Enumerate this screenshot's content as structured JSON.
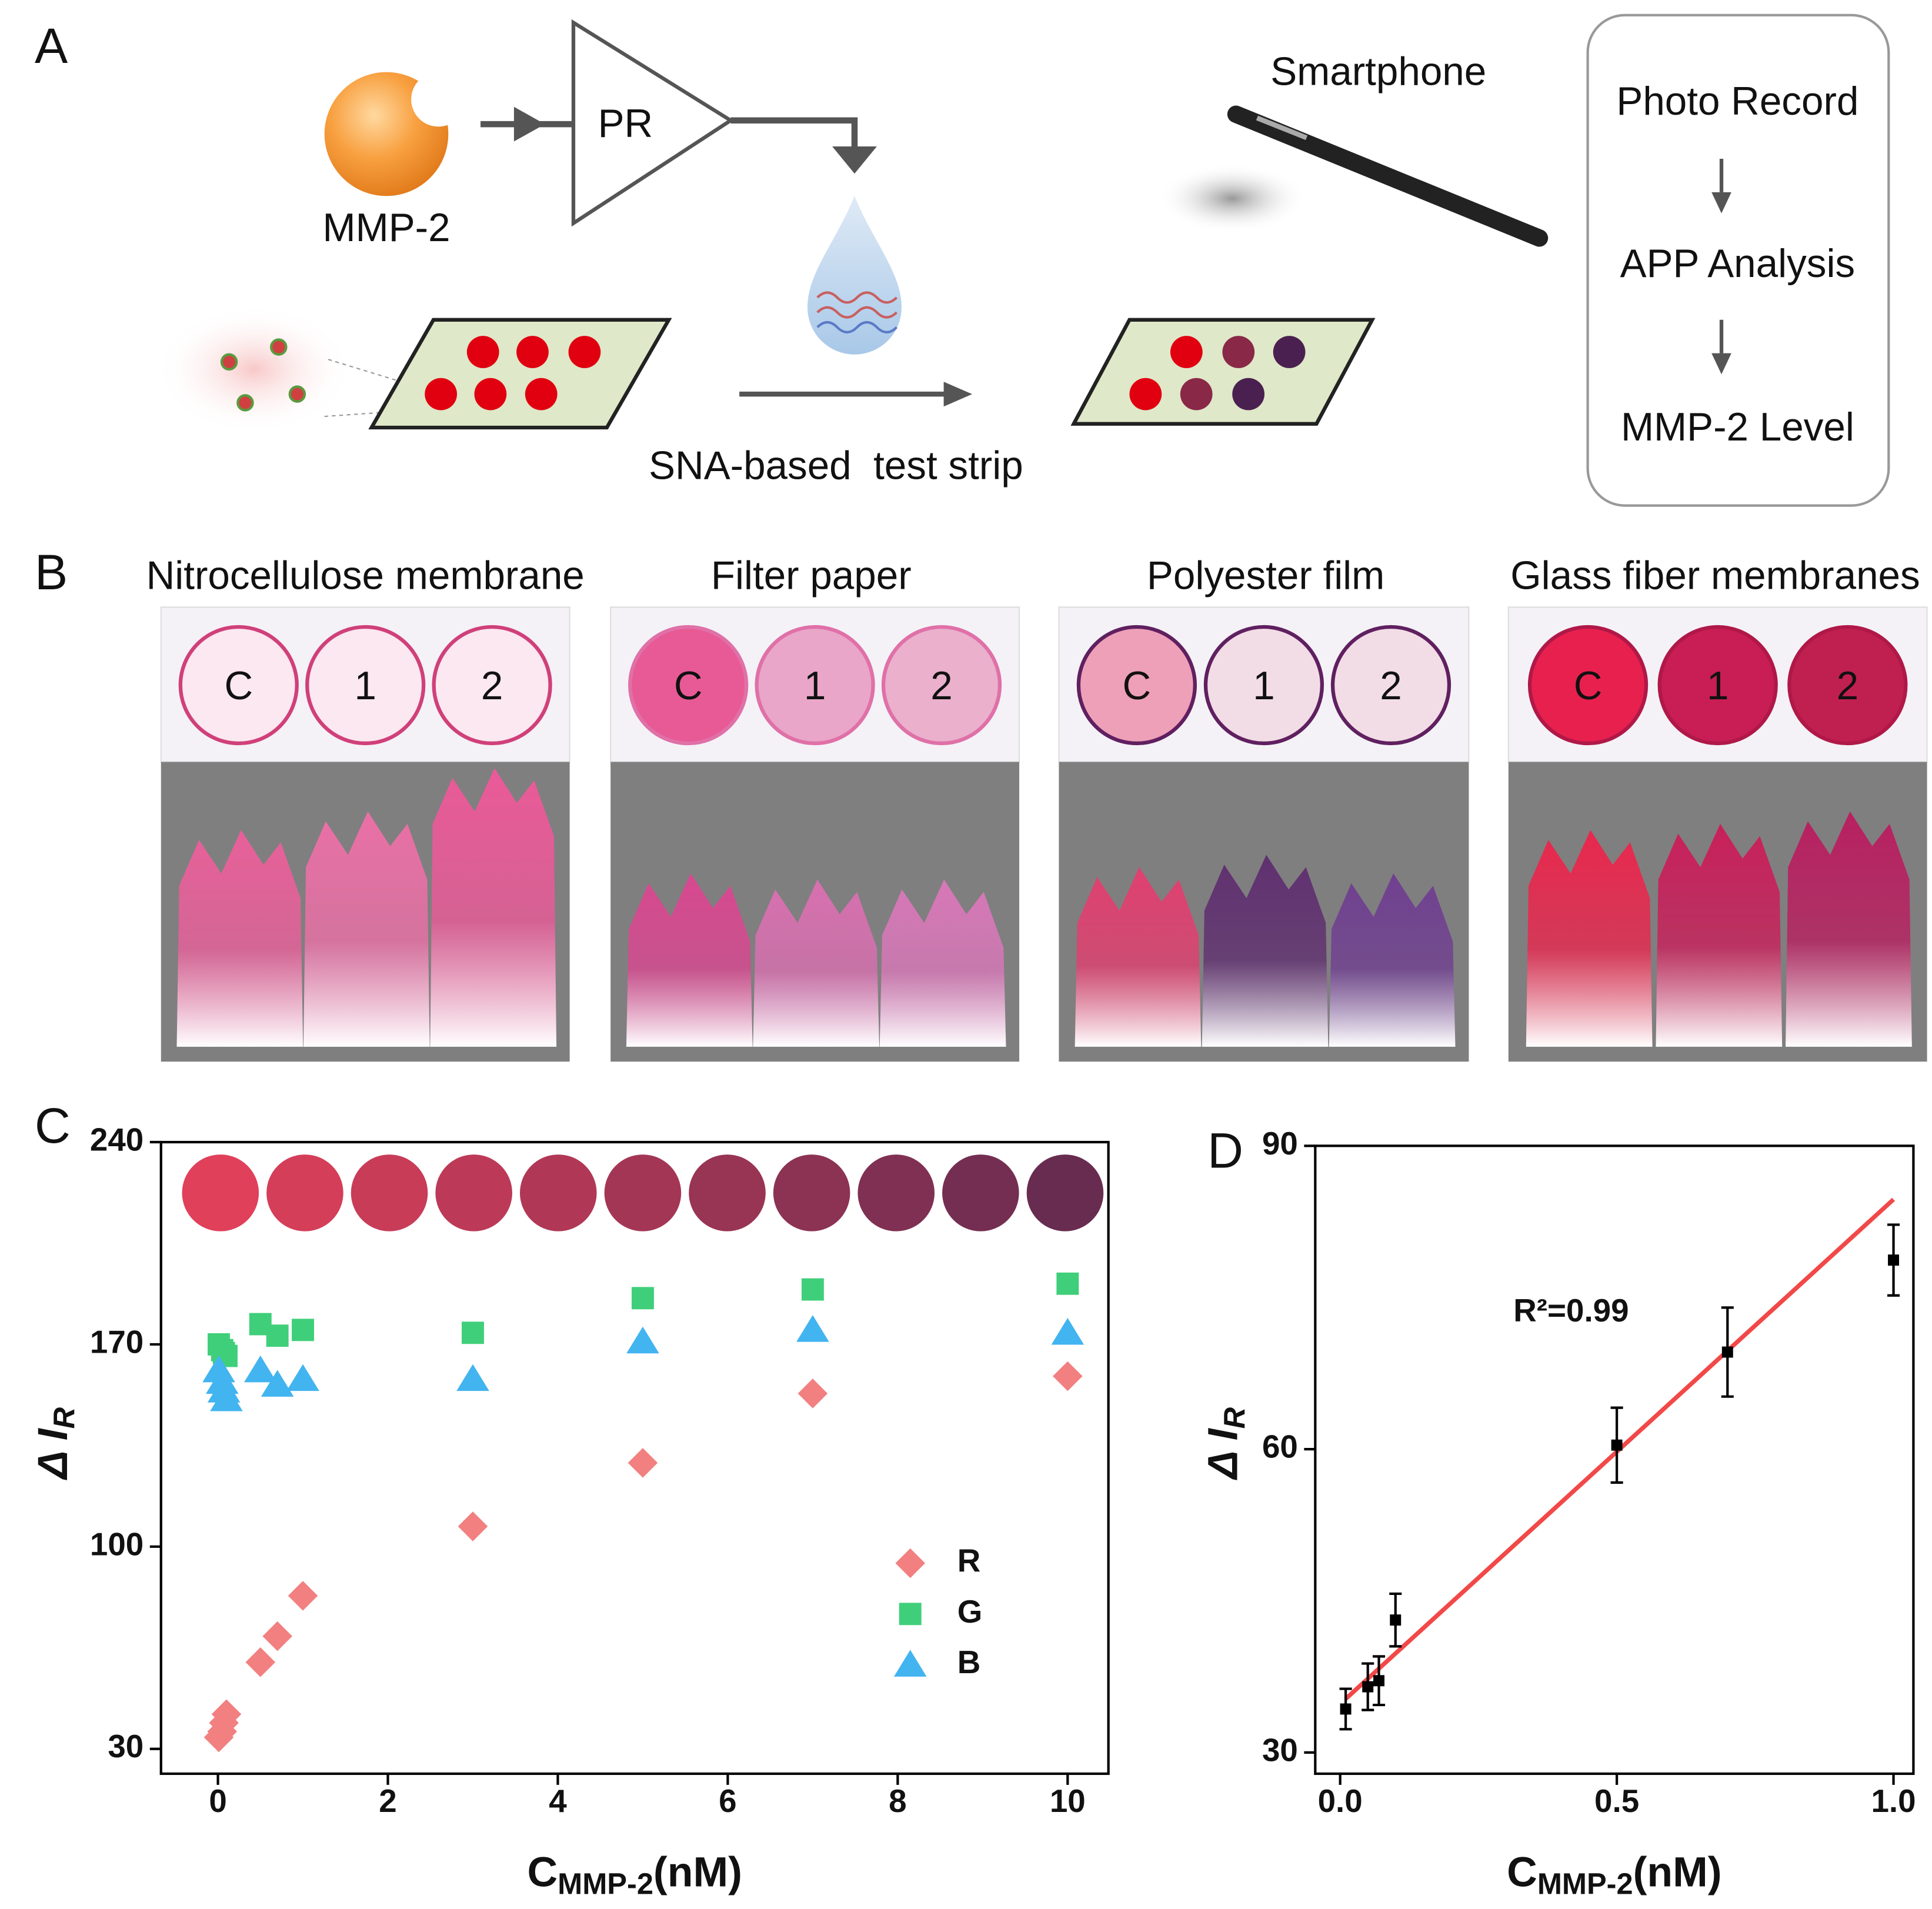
{
  "panel_a": {
    "label": "A",
    "enzyme": "MMP-2",
    "amplifier": "PR",
    "strip_label": "SNA-based  test strip",
    "device": "Smartphone",
    "steps": [
      "Photo Record",
      "APP Analysis",
      "MMP-2 Level"
    ]
  },
  "panel_b": {
    "label": "B",
    "panels": [
      {
        "title": "Nitrocellulose membrane",
        "wells": [
          "C",
          "1",
          "2"
        ]
      },
      {
        "title": "Filter paper",
        "wells": [
          "C",
          "1",
          "2"
        ]
      },
      {
        "title": "Polyester film",
        "wells": [
          "C",
          "1",
          "2"
        ]
      },
      {
        "title": "Glass fiber membranes",
        "wells": [
          "C",
          "1",
          "2"
        ]
      }
    ]
  },
  "chart_data": [
    {
      "type": "scatter",
      "panel": "C",
      "x": [
        0.01,
        0.05,
        0.07,
        0.1,
        0.5,
        0.7,
        1,
        3,
        5,
        7,
        10
      ],
      "series": [
        {
          "name": "R",
          "color": "#f28080",
          "marker": "diamond",
          "values": [
            34,
            36,
            39,
            42,
            60,
            69,
            83,
            107,
            129,
            153,
            159
          ]
        },
        {
          "name": "G",
          "color": "#3fcf7a",
          "marker": "square",
          "values": [
            170,
            168,
            167,
            166,
            177,
            173,
            175,
            174,
            186,
            189,
            191
          ]
        },
        {
          "name": "B",
          "color": "#42b4f0",
          "marker": "triangle",
          "values": [
            161,
            157,
            154,
            151,
            161,
            156,
            158,
            158,
            171,
            175,
            174
          ]
        }
      ],
      "xlim": [
        -0.67,
        10.48
      ],
      "ylim": [
        21.4,
        240
      ],
      "xticks": [
        0,
        2,
        4,
        6,
        8,
        10
      ],
      "yticks": [
        30,
        100,
        170,
        240
      ],
      "x_label": "C",
      "x_label_sub": "MMP-2",
      "x_label_unit": "(nM)",
      "y_label": "Δ I",
      "y_label_sub": "R",
      "legend": "lower right"
    },
    {
      "type": "scatter",
      "panel": "D",
      "x": [
        0.01,
        0.05,
        0.07,
        0.1,
        0.5,
        0.7,
        1
      ],
      "series": [
        {
          "color": "#000000",
          "marker": "square",
          "values": [
            34.3,
            36.5,
            37.1,
            43.1,
            60.4,
            69.6,
            78.7
          ],
          "errors": [
            2,
            2.3,
            2.4,
            2.6,
            3.7,
            4.4,
            3.5
          ]
        }
      ],
      "fit": {
        "x": [
          0.01,
          1
        ],
        "y": [
          35.3,
          84.7
        ],
        "color": "#f24848"
      },
      "annotation": "R²=0.99",
      "xlim": [
        -0.045,
        1.036
      ],
      "ylim": [
        27.9,
        90
      ],
      "xticks": [
        {
          "value": 0,
          "label": "0.0"
        },
        0.5,
        {
          "value": 1,
          "label": "1.0"
        }
      ],
      "yticks": [
        30,
        60,
        90
      ],
      "x_label": "C",
      "x_label_sub": "MMP-2",
      "x_label_unit": "(nM)",
      "y_label": "Δ I",
      "y_label_sub": "R"
    }
  ]
}
